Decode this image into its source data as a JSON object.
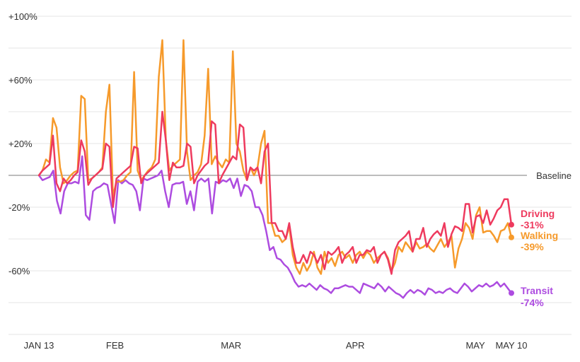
{
  "chart_data": {
    "type": "line",
    "title": "",
    "xlabel": "",
    "ylabel": "",
    "ylim": [
      -100,
      100
    ],
    "yticks": [
      {
        "value": 100,
        "label": "+100%"
      },
      {
        "value": 60,
        "label": "+60%"
      },
      {
        "value": 20,
        "label": "+20%"
      },
      {
        "value": -20,
        "label": "-20%"
      },
      {
        "value": -60,
        "label": "-60%"
      }
    ],
    "xlim": [
      0,
      118
    ],
    "xticks": [
      {
        "day": 0,
        "label": "JAN 13"
      },
      {
        "day": 19,
        "label": "FEB"
      },
      {
        "day": 48,
        "label": "MAR"
      },
      {
        "day": 79,
        "label": "APR"
      },
      {
        "day": 109,
        "label": "MAY"
      },
      {
        "day": 118,
        "label": "MAY 10"
      }
    ],
    "baseline": {
      "value": 0,
      "label": "Baseline"
    },
    "series": [
      {
        "name": "Driving",
        "color": "#ee3a5e",
        "end_label": "Driving",
        "end_value": "-31%",
        "values": [
          0,
          3,
          5,
          7,
          25,
          -5,
          -10,
          -2,
          -5,
          -3,
          0,
          2,
          22,
          15,
          -6,
          -2,
          0,
          2,
          4,
          20,
          18,
          -20,
          -2,
          0,
          2,
          4,
          6,
          18,
          17,
          -5,
          0,
          2,
          4,
          6,
          8,
          40,
          22,
          -3,
          8,
          5,
          5,
          6,
          20,
          18,
          -5,
          0,
          3,
          6,
          8,
          34,
          32,
          -5,
          0,
          4,
          8,
          12,
          10,
          32,
          30,
          -3,
          5,
          3,
          5,
          -5,
          15,
          20,
          -30,
          -30,
          -35,
          -35,
          -40,
          -30,
          -45,
          -55,
          -55,
          -50,
          -55,
          -48,
          -50,
          -55,
          -50,
          -59,
          -48,
          -50,
          -48,
          -45,
          -55,
          -50,
          -48,
          -45,
          -55,
          -50,
          -50,
          -47,
          -48,
          -45,
          -55,
          -50,
          -48,
          -53,
          -62,
          -47,
          -42,
          -40,
          -38,
          -35,
          -48,
          -40,
          -40,
          -33,
          -45,
          -40,
          -37,
          -35,
          -38,
          -30,
          -45,
          -37,
          -32,
          -33,
          -35,
          -18,
          -18,
          -36,
          -26,
          -25,
          -30,
          -22,
          -31,
          -27,
          -22,
          -20,
          -15,
          -15,
          -31
        ]
      },
      {
        "name": "Walking",
        "color": "#f69a2b",
        "end_label": "Walking",
        "end_value": "-39%",
        "values": [
          0,
          3,
          10,
          8,
          36,
          30,
          5,
          -5,
          -3,
          0,
          2,
          3,
          50,
          48,
          -3,
          -2,
          0,
          2,
          5,
          40,
          57,
          -13,
          -4,
          -4,
          -3,
          0,
          2,
          65,
          3,
          -3,
          0,
          3,
          5,
          10,
          62,
          85,
          22,
          3,
          6,
          8,
          10,
          85,
          15,
          -3,
          0,
          2,
          7,
          25,
          67,
          7,
          12,
          8,
          5,
          10,
          8,
          78,
          20,
          15,
          3,
          -3,
          5,
          0,
          5,
          20,
          28,
          -30,
          -30,
          -38,
          -38,
          -42,
          -40,
          -32,
          -50,
          -58,
          -62,
          -55,
          -60,
          -56,
          -48,
          -58,
          -62,
          -48,
          -55,
          -52,
          -57,
          -50,
          -48,
          -52,
          -50,
          -55,
          -50,
          -48,
          -52,
          -48,
          -50,
          -55,
          -52,
          -50,
          -48,
          -52,
          -60,
          -55,
          -45,
          -48,
          -42,
          -45,
          -48,
          -42,
          -46,
          -45,
          -43,
          -46,
          -48,
          -44,
          -40,
          -45,
          -42,
          -38,
          -58,
          -46,
          -40,
          -30,
          -33,
          -40,
          -25,
          -20,
          -36,
          -35,
          -35,
          -38,
          -42,
          -35,
          -34,
          -30,
          -39
        ]
      },
      {
        "name": "Transit",
        "color": "#ad4ce0",
        "end_label": "Transit",
        "end_value": "-74%",
        "values": [
          0,
          -3,
          -2,
          -1,
          3,
          -16,
          -24,
          -10,
          -5,
          -5,
          -4,
          -5,
          12,
          -25,
          -28,
          -10,
          -8,
          -7,
          -5,
          -6,
          -18,
          -30,
          -3,
          -5,
          -3,
          -5,
          -6,
          -10,
          -22,
          -2,
          -3,
          -2,
          -1,
          0,
          3,
          -10,
          -20,
          -6,
          -5,
          -5,
          -4,
          -18,
          -10,
          -22,
          -4,
          -2,
          -4,
          -2,
          -24,
          -4,
          -5,
          -3,
          -4,
          -2,
          -8,
          -2,
          -13,
          -6,
          -7,
          -10,
          -20,
          -20,
          -25,
          -35,
          -47,
          -45,
          -52,
          -53,
          -56,
          -58,
          -62,
          -67,
          -70,
          -69,
          -70,
          -68,
          -70,
          -72,
          -69,
          -71,
          -72,
          -74,
          -71,
          -71,
          -70,
          -69,
          -70,
          -70,
          -72,
          -74,
          -68,
          -69,
          -70,
          -71,
          -68,
          -70,
          -73,
          -70,
          -72,
          -74,
          -75,
          -77,
          -74,
          -72,
          -74,
          -72,
          -73,
          -75,
          -71,
          -72,
          -74,
          -73,
          -74,
          -72,
          -71,
          -73,
          -74,
          -71,
          -68,
          -70,
          -73,
          -71,
          -69,
          -70,
          -68,
          -70,
          -69,
          -67,
          -70,
          -68,
          -71,
          -74
        ]
      }
    ],
    "gridlines": true
  }
}
